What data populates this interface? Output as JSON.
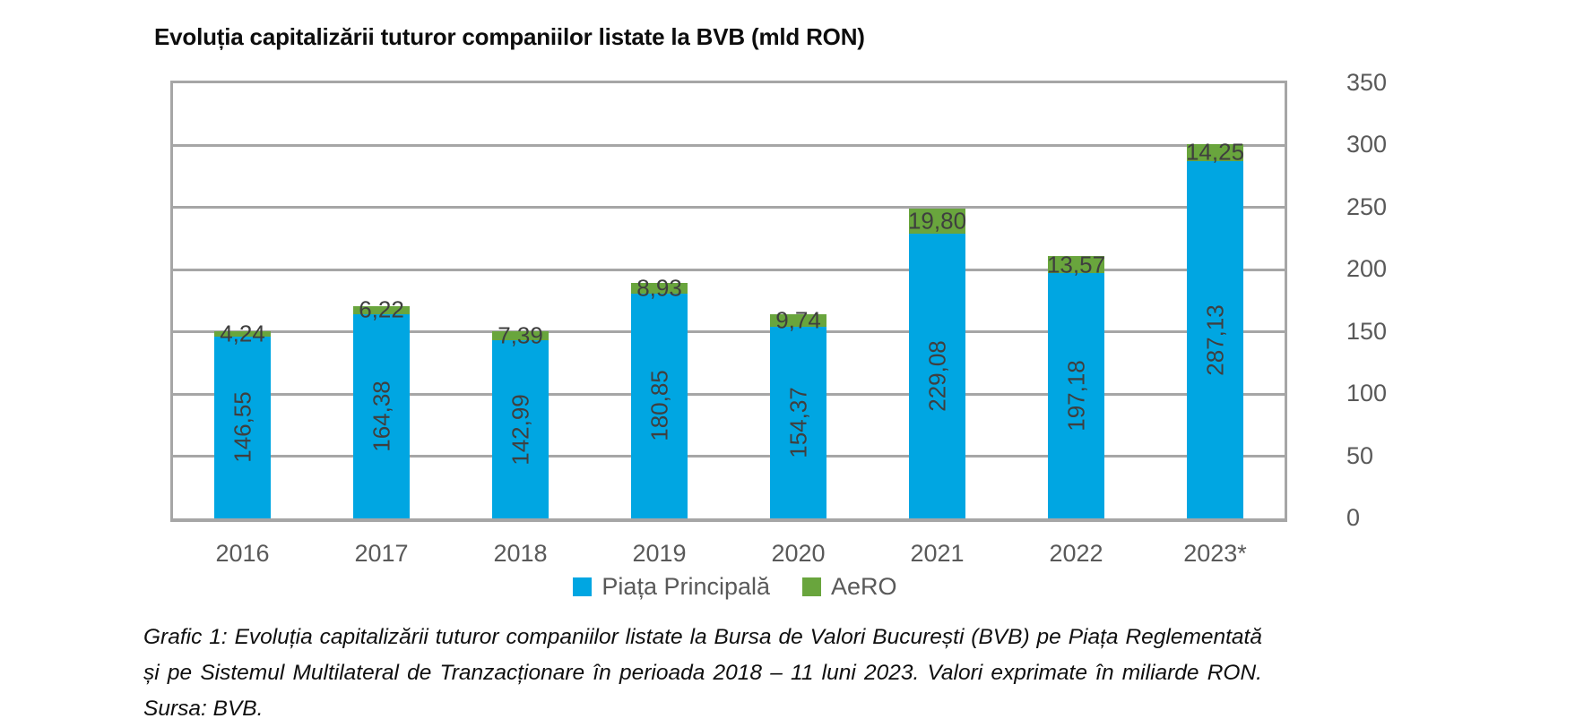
{
  "title": "Evoluția capitalizării tuturor companiilor listate la BVB (mld RON)",
  "caption": "Grafic 1: Evoluția capitalizării tuturor companiilor listate la Bursa de Valori București (BVB) pe Piața Reglementată și pe Sistemul Multilateral de Tranzacționare în perioada 2018 – 11 luni 2023. Valori exprimate în miliarde RON. Sursa: BVB.",
  "colors": {
    "principala_blue": "#00A6E2",
    "aero_green": "#69A53D",
    "gridline_gray": "#a6a6a6",
    "axis_text_gray": "#595959",
    "bar_label_gray": "#3f3f3f"
  },
  "chart_data": {
    "type": "bar",
    "stacked": true,
    "title": "Evoluția capitalizării tuturor companiilor listate la BVB (mld RON)",
    "categories": [
      "2016",
      "2017",
      "2018",
      "2019",
      "2020",
      "2021",
      "2022",
      "2023*"
    ],
    "series": [
      {
        "name": "Piața Principală",
        "color": "#00A6E2",
        "values": [
          146.55,
          164.38,
          142.99,
          180.85,
          154.37,
          229.08,
          197.18,
          287.13
        ],
        "labels": [
          "146,55",
          "164,38",
          "142,99",
          "180,85",
          "154,37",
          "229,08",
          "197,18",
          "287,13"
        ]
      },
      {
        "name": "AeRO",
        "color": "#69A53D",
        "values": [
          4.24,
          6.22,
          7.39,
          8.93,
          9.74,
          19.8,
          13.57,
          14.25
        ],
        "labels": [
          "4,24",
          "6,22",
          "7,39",
          "8,93",
          "9,74",
          "19,80",
          "13,57",
          "14,25"
        ]
      }
    ],
    "ylim": [
      0,
      350
    ],
    "yticks": [
      0,
      50,
      100,
      150,
      200,
      250,
      300,
      350
    ],
    "ytick_labels": [
      "0",
      "50",
      "100",
      "150",
      "200",
      "250",
      "300",
      "350"
    ],
    "grid": true,
    "legend_position": "bottom",
    "value_labels": true
  }
}
